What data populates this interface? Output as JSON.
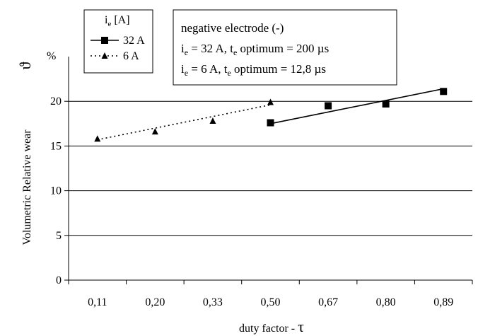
{
  "chart_data": {
    "type": "line",
    "ylabel": "Volumetric Relative wear",
    "ylabel_symbol": "ϑ",
    "yunit": "%",
    "xlabel": "duty factor - ",
    "xlabel_symbol": "τ",
    "categories": [
      "0,11",
      "0,20",
      "0,33",
      "0,50",
      "0,67",
      "0,80",
      "0,89"
    ],
    "yticks": [
      0,
      5,
      10,
      15,
      20
    ],
    "ylim": [
      0,
      25
    ],
    "grid": "horizontal",
    "legend": {
      "title": "i",
      "title_sub": "e",
      "title_unit": " [A]",
      "placement": "top-left"
    },
    "series": [
      {
        "name": "32 A",
        "marker": "square",
        "line": "solid",
        "x": [
          "0,50",
          "0,67",
          "0,80",
          "0,89"
        ],
        "values": [
          17.6,
          19.5,
          19.7,
          21.1
        ],
        "trend": [
          17.5,
          21.4
        ]
      },
      {
        "name": "6 A",
        "marker": "triangle",
        "line": "dotted",
        "x": [
          "0,11",
          "0,20",
          "0,33",
          "0,50"
        ],
        "values": [
          15.8,
          16.6,
          17.8,
          19.9
        ],
        "trend": [
          15.7,
          19.6
        ]
      }
    ],
    "annotation": {
      "title": "negative electrode (-)",
      "lines": [
        {
          "i": "i",
          "isub": "e",
          "mid": " = 32 A, t",
          "tsub": "e",
          "rest": " optimum = 200  µs"
        },
        {
          "i": "i",
          "isub": "e",
          "mid": " = 6 A, t",
          "tsub": "e",
          "rest": " optimum =  12,8  µs"
        }
      ]
    }
  }
}
